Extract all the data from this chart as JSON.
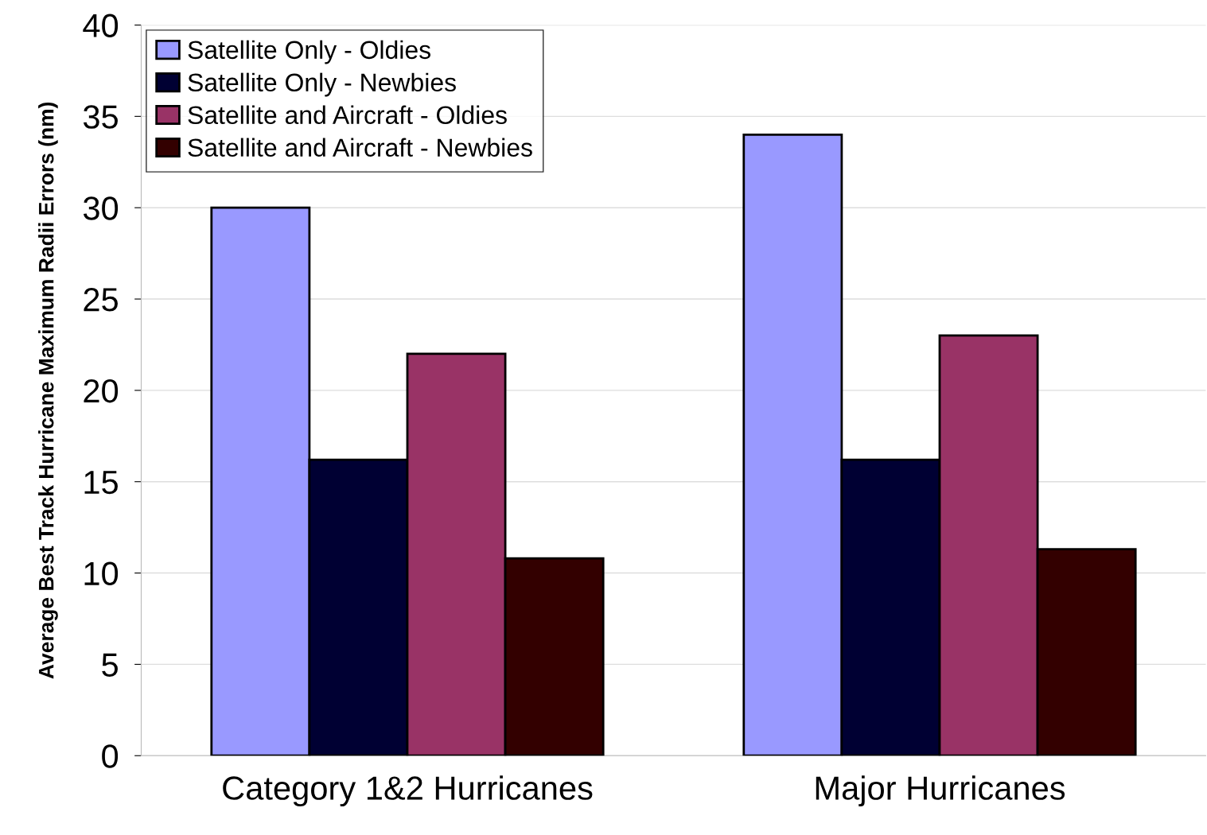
{
  "chart_data": {
    "type": "bar",
    "ylabel": "Average Best Track Hurricane Maximum Radii Errors (nm)",
    "categories": [
      "Category 1&2 Hurricanes",
      "Major Hurricanes"
    ],
    "series": [
      {
        "name": "Satellite Only - Oldies",
        "color": "#9999ff",
        "values": [
          30,
          34
        ]
      },
      {
        "name": "Satellite Only - Newbies",
        "color": "#000033",
        "values": [
          16.2,
          16.2
        ]
      },
      {
        "name": "Satellite and Aircraft - Oldies",
        "color": "#993366",
        "values": [
          22,
          23
        ]
      },
      {
        "name": "Satellite and Aircraft - Newbies",
        "color": "#330000",
        "values": [
          10.8,
          11.3
        ]
      }
    ],
    "ylim": [
      0,
      40
    ],
    "yticks": [
      0,
      5,
      10,
      15,
      20,
      25,
      30,
      35,
      40
    ],
    "grid": "y",
    "legend": "top left"
  }
}
